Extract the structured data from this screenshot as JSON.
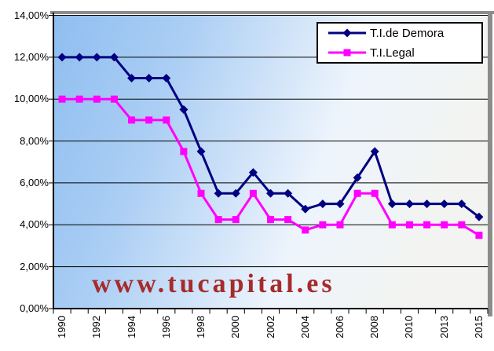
{
  "watermark": "www.tucapital.es",
  "chart_data": {
    "type": "line",
    "title": "",
    "categories": [
      "1990",
      "1991",
      "1992",
      "1993",
      "1994",
      "1995",
      "1996",
      "1997",
      "1998",
      "1999",
      "2000",
      "2001",
      "2002",
      "2003",
      "2004",
      "2005",
      "2006",
      "2007",
      "2008",
      "2009",
      "2010",
      "2012",
      "2013",
      "2014",
      "2015"
    ],
    "x_tick_labels": [
      "1990",
      "1992",
      "1994",
      "1996",
      "1998",
      "2000",
      "2002",
      "2004",
      "2006",
      "2008",
      "2010",
      "2013",
      "2015"
    ],
    "series": [
      {
        "name": "T.I.de Demora",
        "marker": "diamond",
        "color": "#000080",
        "values": [
          12,
          12,
          12,
          12,
          11,
          11,
          11,
          9.5,
          7.5,
          5.5,
          5.5,
          6.5,
          5.5,
          5.5,
          4.75,
          5,
          5,
          6.25,
          7.5,
          5,
          5,
          5,
          5,
          5,
          4.375
        ]
      },
      {
        "name": "T.I.Legal",
        "marker": "square",
        "color": "#FF00FF",
        "values": [
          10,
          10,
          10,
          10,
          9,
          9,
          9,
          7.5,
          5.5,
          4.25,
          4.25,
          5.5,
          4.25,
          4.25,
          3.75,
          4,
          4,
          5.5,
          5.5,
          4,
          4,
          4,
          4,
          4,
          3.5
        ]
      }
    ],
    "ylim": [
      0,
      14
    ],
    "y_ticks": [
      0,
      2,
      4,
      6,
      8,
      10,
      12,
      14
    ],
    "y_tick_labels": [
      "0,00%",
      "2,00%",
      "4,00%",
      "6,00%",
      "8,00%",
      "10,00%",
      "12,00%",
      "14,00%"
    ],
    "grid": true,
    "legend_position": "top-right"
  },
  "colors": {
    "grid": "#000000",
    "axis": "#000000",
    "plot_border_gray": "#8C8C8C",
    "plot_bg_stops": [
      "#8FBEF0",
      "#ABCEF4",
      "#EDF4FC",
      "#F3F4F1"
    ],
    "watermark": "#A62B2B",
    "background": "#FFFFFF"
  }
}
